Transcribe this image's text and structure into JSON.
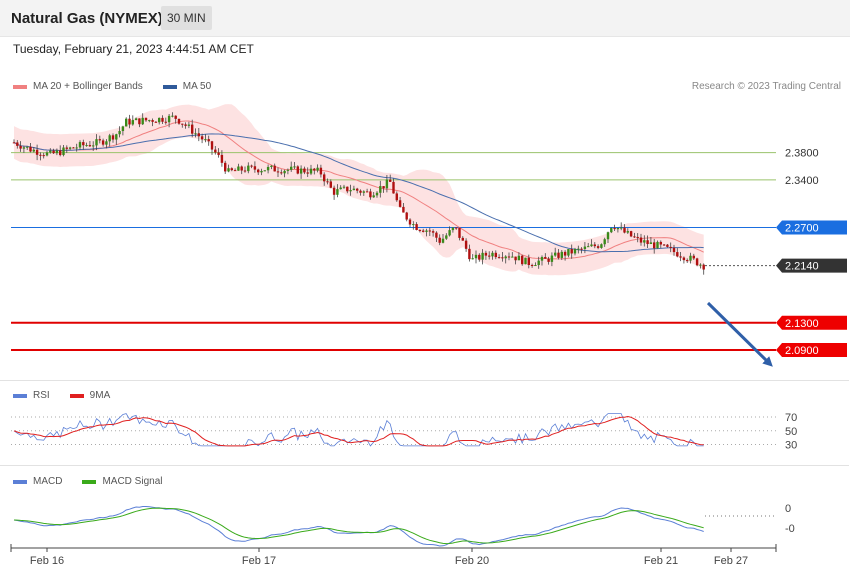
{
  "header": {
    "title": "Natural Gas (NYMEX)",
    "timeframe": "30 MIN"
  },
  "datetime": "Tuesday, February 21, 2023 4:44:51 AM CET",
  "credit": "Research © 2023 Trading Central",
  "legends": {
    "main": [
      {
        "label": "MA 20 + Bollinger Bands",
        "color": "#f08080"
      },
      {
        "label": "MA 50",
        "color": "#2f5a9a"
      }
    ],
    "rsi": [
      {
        "label": "RSI",
        "color": "#5b7fd6"
      },
      {
        "label": "9MA",
        "color": "#e02020"
      }
    ],
    "macd": [
      {
        "label": "MACD",
        "color": "#5b7fd6"
      },
      {
        "label": "MACD Signal",
        "color": "#3aaa1a"
      }
    ]
  },
  "chart_data": {
    "type": "candlestick",
    "price_range": [
      2.046,
      2.516
    ],
    "levels": [
      {
        "label": "2.3800",
        "value": 2.38,
        "kind": "target",
        "color": "#9ac36b"
      },
      {
        "label": "2.3400",
        "value": 2.34,
        "kind": "target",
        "color": "#9ac36b"
      },
      {
        "label": "2.2700",
        "value": 2.27,
        "kind": "pivot",
        "color": "#1a6ee0"
      },
      {
        "label": "2.2140",
        "value": 2.214,
        "kind": "last",
        "color": "#333333"
      },
      {
        "label": "2.1300",
        "value": 2.13,
        "kind": "support",
        "color": "#e00000"
      },
      {
        "label": "2.0900",
        "value": 2.09,
        "kind": "support",
        "color": "#e00000"
      }
    ],
    "x_labels": [
      "Feb 16",
      "Feb 17",
      "Feb 20",
      "Feb 21",
      "Feb 27"
    ],
    "rsi_ticks": [
      "70",
      "50",
      "30"
    ],
    "macd_ticks": [
      "0",
      "-0"
    ]
  }
}
